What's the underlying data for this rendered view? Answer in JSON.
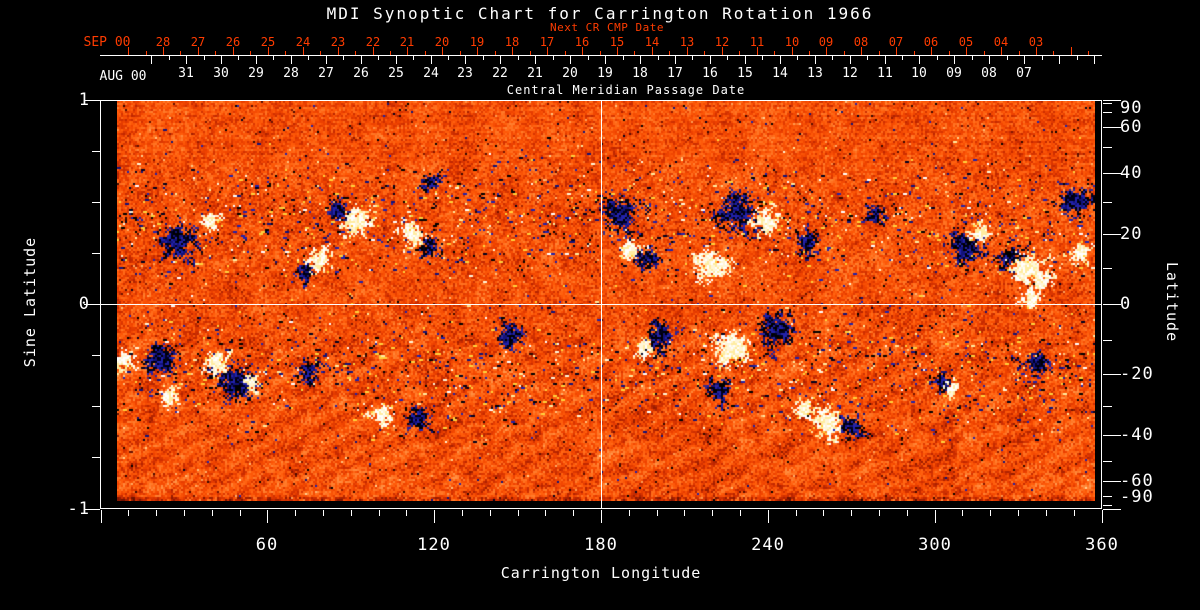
{
  "title": "MDI Synoptic Chart for Carrington Rotation 1966",
  "colors": {
    "background": "#000000",
    "foreground": "#ffffff",
    "accent_red": "#ff3c00"
  },
  "chart_data": {
    "type": "heatmap",
    "description": "Solar photospheric magnetic field synoptic map (MDI magnetogram) for Carrington rotation 1966. Grainy orange background with dark (negative polarity) and white/yellow (positive polarity) active regions concentrated in two latitude bands around +/-10 to +/-35 degrees.",
    "title": "MDI Synoptic Chart for Carrington Rotation 1966",
    "x_axis": {
      "label": "Carrington Longitude",
      "min": 0,
      "max": 360,
      "major_ticks": [
        60,
        120,
        180,
        240,
        300,
        360
      ],
      "minor_step": 10
    },
    "y_axis_left": {
      "label": "Sine Latitude",
      "min": -1,
      "max": 1,
      "major_ticks": [
        1,
        0,
        -1
      ],
      "minor_step": 0.25
    },
    "y_axis_right": {
      "label": "Latitude",
      "labeled_ticks": [
        90,
        60,
        40,
        20,
        0,
        -20,
        -40,
        -60,
        -90
      ],
      "minor_ticks": [
        80,
        70,
        50,
        30,
        10,
        -10,
        -30,
        -50,
        -70,
        -80
      ]
    },
    "top_axis_next_cr": {
      "title": "Next CR CMP Date",
      "month_label": "SEP 00",
      "dates": [
        "28",
        "27",
        "26",
        "25",
        "24",
        "23",
        "22",
        "21",
        "20",
        "19",
        "18",
        "17",
        "16",
        "15",
        "14",
        "13",
        "12",
        "11",
        "10",
        "09",
        "08",
        "07",
        "06",
        "05",
        "04",
        "03"
      ]
    },
    "top_axis_cmp": {
      "title": "Central Meridian Passage Date",
      "month_label": "AUG 00",
      "dates": [
        "31",
        "30",
        "29",
        "28",
        "27",
        "26",
        "25",
        "24",
        "23",
        "22",
        "21",
        "20",
        "19",
        "18",
        "17",
        "16",
        "15",
        "14",
        "13",
        "12",
        "11",
        "10",
        "09",
        "08",
        "07"
      ]
    },
    "reference_lines": {
      "carrington_longitude": 180,
      "sine_latitude": 0
    },
    "palette": {
      "base_gradient": [
        "#2e0600",
        "#7a1400",
        "#c22800",
        "#ef4200",
        "#ff5c0a",
        "#ff7c2b",
        "#ffa057",
        "#ffd494"
      ],
      "negative_polarity": [
        "#000000",
        "#00001e",
        "#12127a",
        "#2222aa"
      ],
      "negative_fringe": "#3a2a86",
      "positive_polarity": [
        "#ffffff",
        "#fff6d8",
        "#ffeca0"
      ],
      "positive_fringe": "#ffd23c",
      "gridline": "#ffffff"
    },
    "active_regions": [
      {
        "lon": 28,
        "lat": 18,
        "size": 13,
        "polarity": "neg"
      },
      {
        "lon": 39,
        "lat": 24,
        "size": 6,
        "polarity": "pos"
      },
      {
        "lon": 73,
        "lat": 9,
        "size": 6,
        "polarity": "neg"
      },
      {
        "lon": 79,
        "lat": 12,
        "size": 8,
        "polarity": "pos"
      },
      {
        "lon": 85,
        "lat": 27,
        "size": 8,
        "polarity": "neg"
      },
      {
        "lon": 92,
        "lat": 24,
        "size": 10,
        "polarity": "pos"
      },
      {
        "lon": 112,
        "lat": 20,
        "size": 8,
        "polarity": "pos"
      },
      {
        "lon": 118,
        "lat": 16,
        "size": 6,
        "polarity": "neg"
      },
      {
        "lon": 118,
        "lat": 37,
        "size": 6,
        "polarity": "neg"
      },
      {
        "lon": 187,
        "lat": 26,
        "size": 13,
        "polarity": "neg"
      },
      {
        "lon": 190,
        "lat": 16,
        "size": 7,
        "polarity": "pos"
      },
      {
        "lon": 197,
        "lat": 13,
        "size": 8,
        "polarity": "neg"
      },
      {
        "lon": 230,
        "lat": 27,
        "size": 13,
        "polarity": "neg"
      },
      {
        "lon": 239,
        "lat": 24,
        "size": 9,
        "polarity": "pos"
      },
      {
        "lon": 220,
        "lat": 11,
        "size": 11,
        "polarity": "pos"
      },
      {
        "lon": 254,
        "lat": 18,
        "size": 8,
        "polarity": "neg"
      },
      {
        "lon": 279,
        "lat": 26,
        "size": 5,
        "polarity": "neg"
      },
      {
        "lon": 311,
        "lat": 16,
        "size": 12,
        "polarity": "neg"
      },
      {
        "lon": 316,
        "lat": 20,
        "size": 6,
        "polarity": "pos"
      },
      {
        "lon": 327,
        "lat": 13,
        "size": 8,
        "polarity": "neg"
      },
      {
        "lon": 333,
        "lat": 10,
        "size": 11,
        "polarity": "pos"
      },
      {
        "lon": 338,
        "lat": 7,
        "size": 7,
        "polarity": "pos"
      },
      {
        "lon": 334,
        "lat": 2,
        "size": 6,
        "polarity": "pos"
      },
      {
        "lon": 350,
        "lat": 30,
        "size": 11,
        "polarity": "neg"
      },
      {
        "lon": 353,
        "lat": 15,
        "size": 7,
        "polarity": "pos"
      },
      {
        "lon": 8,
        "lat": -16,
        "size": 7,
        "polarity": "pos"
      },
      {
        "lon": 21,
        "lat": -16,
        "size": 11,
        "polarity": "neg"
      },
      {
        "lon": 24,
        "lat": -27,
        "size": 6,
        "polarity": "pos"
      },
      {
        "lon": 41,
        "lat": -17,
        "size": 8,
        "polarity": "pos"
      },
      {
        "lon": 49,
        "lat": -22,
        "size": 13,
        "polarity": "neg"
      },
      {
        "lon": 54,
        "lat": -23,
        "size": 5,
        "polarity": "pos"
      },
      {
        "lon": 75,
        "lat": -19,
        "size": 7,
        "polarity": "neg"
      },
      {
        "lon": 101,
        "lat": -33,
        "size": 8,
        "polarity": "pos"
      },
      {
        "lon": 114,
        "lat": -34,
        "size": 8,
        "polarity": "neg"
      },
      {
        "lon": 148,
        "lat": -9,
        "size": 9,
        "polarity": "neg"
      },
      {
        "lon": 195,
        "lat": -12,
        "size": 6,
        "polarity": "pos"
      },
      {
        "lon": 201,
        "lat": -9,
        "size": 10,
        "polarity": "neg"
      },
      {
        "lon": 226,
        "lat": -13,
        "size": 12,
        "polarity": "pos"
      },
      {
        "lon": 243,
        "lat": -7,
        "size": 12,
        "polarity": "neg"
      },
      {
        "lon": 221,
        "lat": -25,
        "size": 8,
        "polarity": "neg"
      },
      {
        "lon": 253,
        "lat": -31,
        "size": 6,
        "polarity": "pos"
      },
      {
        "lon": 261,
        "lat": -35,
        "size": 10,
        "polarity": "pos"
      },
      {
        "lon": 270,
        "lat": -37,
        "size": 8,
        "polarity": "neg"
      },
      {
        "lon": 302,
        "lat": -22,
        "size": 6,
        "polarity": "neg"
      },
      {
        "lon": 306,
        "lat": -24,
        "size": 5,
        "polarity": "pos"
      },
      {
        "lon": 337,
        "lat": -17,
        "size": 8,
        "polarity": "neg"
      }
    ]
  }
}
